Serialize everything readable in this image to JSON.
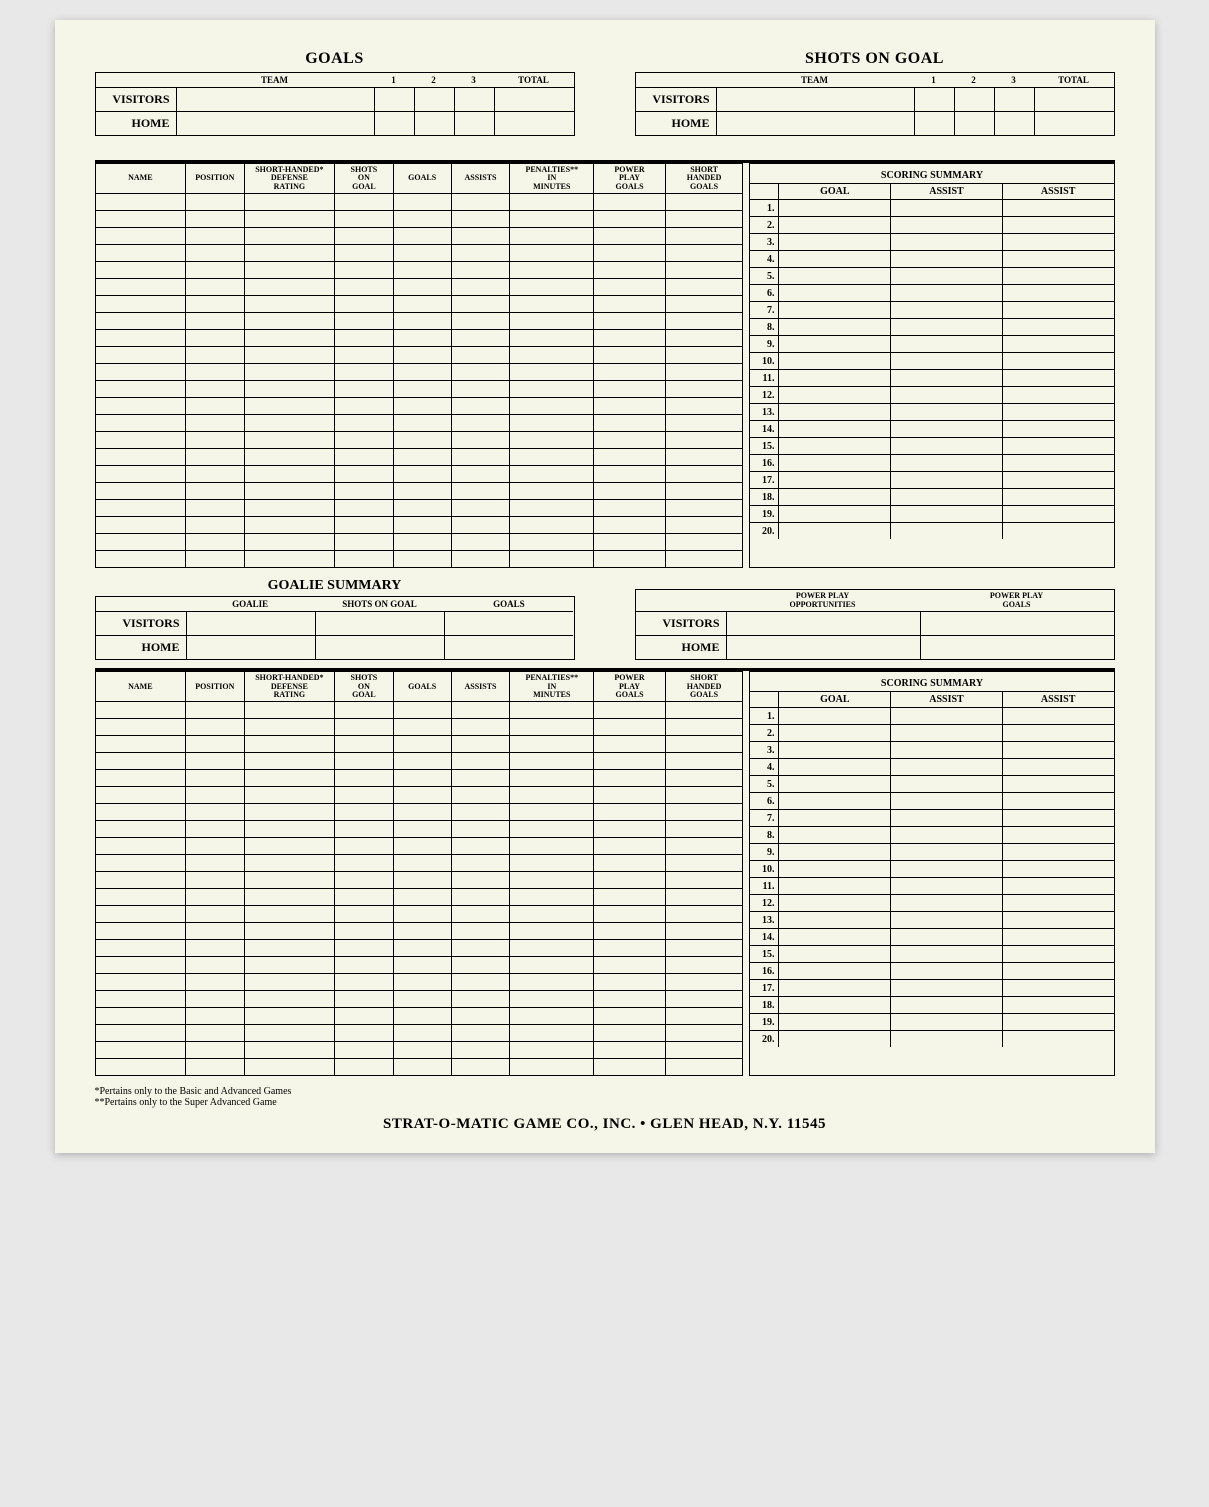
{
  "top": {
    "goals": {
      "title": "GOALS",
      "headers": [
        "",
        "TEAM",
        "1",
        "2",
        "3",
        "TOTAL"
      ],
      "rows": [
        "VISITORS",
        "HOME"
      ]
    },
    "shots": {
      "title": "SHOTS ON GOAL",
      "headers": [
        "",
        "TEAM",
        "1",
        "2",
        "3",
        "TOTAL"
      ],
      "rows": [
        "VISITORS",
        "HOME"
      ]
    }
  },
  "stats_headers": [
    "NAME",
    "POSITION",
    "SHORT-HANDED*\nDEFENSE\nRATING",
    "SHOTS\nON\nGOAL",
    "GOALS",
    "ASSISTS",
    "PENALTIES**\nIN\nMINUTES",
    "POWER\nPLAY\nGOALS",
    "SHORT\nHANDED\nGOALS"
  ],
  "stats_rows": 22,
  "summary": {
    "title": "SCORING SUMMARY",
    "headers": [
      "",
      "GOAL",
      "ASSIST",
      "ASSIST"
    ],
    "count": 20
  },
  "goalie": {
    "title": "GOALIE SUMMARY",
    "headers": [
      "",
      "GOALIE",
      "SHOTS ON GOAL",
      "GOALS"
    ],
    "rows": [
      "VISITORS",
      "HOME"
    ]
  },
  "powerplay": {
    "headers": [
      "",
      "POWER PLAY\nOPPORTUNITIES",
      "POWER PLAY\nGOALS"
    ],
    "rows": [
      "VISITORS",
      "HOME"
    ]
  },
  "footnotes": {
    "l1": "*Pertains only to the Basic and Advanced Games",
    "l2": "**Pertains only to the Super Advanced Game"
  },
  "footer": "STRAT-O-MATIC GAME CO., INC. • GLEN HEAD, N.Y. 11545"
}
